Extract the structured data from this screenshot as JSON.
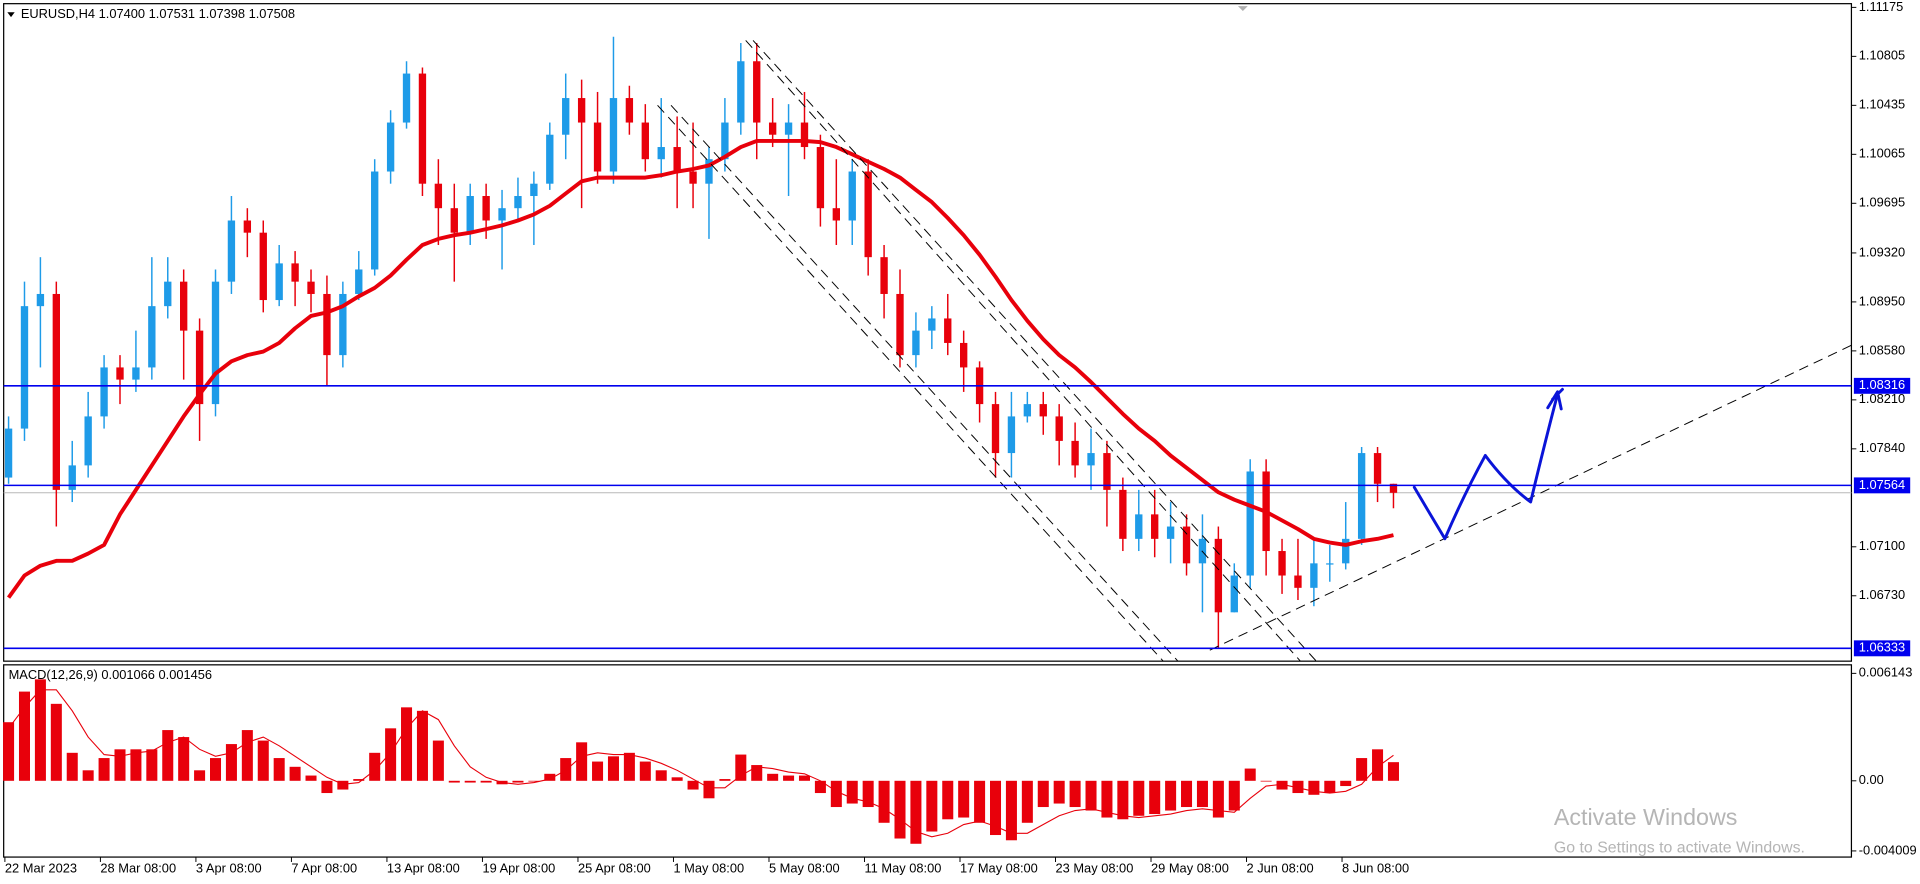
{
  "chart_data": [
    {
      "type": "candlestick",
      "title": "EURUSD,H4 1.07400 1.07531 1.07398 1.07508",
      "categories": [
        "22 Mar 2023",
        null,
        null,
        null,
        null,
        null,
        "28 Mar 08:00",
        null,
        null,
        null,
        null,
        null,
        "3 Apr 08:00",
        null,
        null,
        null,
        null,
        null,
        "7 Apr 08:00",
        null,
        null,
        null,
        null,
        null,
        "13 Apr 08:00",
        null,
        null,
        null,
        null,
        null,
        "19 Apr 08:00",
        null,
        null,
        null,
        null,
        null,
        "25 Apr 08:00",
        null,
        null,
        null,
        null,
        null,
        "1 May 08:00",
        null,
        null,
        null,
        null,
        null,
        "5 May 08:00",
        null,
        null,
        null,
        null,
        null,
        "11 May 08:00",
        null,
        null,
        null,
        null,
        null,
        "17 May 08:00",
        null,
        null,
        null,
        null,
        null,
        "23 May 08:00",
        null,
        null,
        null,
        null,
        null,
        "29 May 08:00",
        null,
        null,
        null,
        null,
        null,
        "2 Jun 08:00",
        null,
        null,
        null,
        null,
        null,
        "8 Jun 08:00",
        null,
        null,
        null
      ],
      "open": [
        1.07623,
        1.07993,
        1.08918,
        1.0901,
        1.0753,
        1.07715,
        1.08085,
        1.08455,
        1.08363,
        1.08455,
        1.08918,
        1.09103,
        1.08733,
        1.08178,
        1.09103,
        1.09565,
        1.09473,
        1.08964,
        1.09241,
        1.09103,
        1.0901,
        1.08548,
        1.0901,
        1.09195,
        1.09935,
        1.10305,
        1.10675,
        1.09843,
        1.09658,
        1.09473,
        1.0975,
        1.09565,
        1.09658,
        1.0975,
        1.09843,
        1.10213,
        1.1049,
        1.10305,
        1.09935,
        1.1049,
        1.10305,
        1.10028,
        1.1012,
        1.09935,
        1.09843,
        1.10028,
        1.10305,
        1.10768,
        1.10305,
        1.10213,
        1.10305,
        1.1012,
        1.09658,
        1.09565,
        1.09935,
        1.09288,
        1.0901,
        1.08548,
        1.08733,
        1.08825,
        1.0864,
        1.08455,
        1.08178,
        1.07808,
        1.08085,
        1.08178,
        1.08085,
        1.079,
        1.07715,
        1.07808,
        1.0753,
        1.0716,
        1.07345,
        1.0716,
        1.07253,
        1.06975,
        1.0716,
        1.06605,
        1.06883,
        1.07669,
        1.07068,
        1.06883,
        1.0679,
        1.06975,
        1.06975,
        1.0716,
        1.07808,
        1.07576
      ],
      "high": [
        1.08085,
        1.09103,
        1.09288,
        1.09103,
        1.079,
        1.0827,
        1.08548,
        1.08548,
        1.08733,
        1.09288,
        1.09288,
        1.09195,
        1.08825,
        1.09195,
        1.0975,
        1.09658,
        1.09565,
        1.0938,
        1.09334,
        1.09195,
        1.09149,
        1.09103,
        1.09334,
        1.10028,
        1.10398,
        1.10768,
        1.10721,
        1.10028,
        1.09843,
        1.09843,
        1.09843,
        1.09796,
        1.09889,
        1.09935,
        1.10305,
        1.10675,
        1.10629,
        1.10536,
        1.10953,
        1.10583,
        1.10444,
        1.1049,
        1.10351,
        1.10305,
        1.1012,
        1.1049,
        1.10906,
        1.10906,
        1.1049,
        1.10444,
        1.10536,
        1.10213,
        1.10028,
        1.10028,
        1.10028,
        1.0938,
        1.09195,
        1.08871,
        1.08918,
        1.0901,
        1.08733,
        1.08501,
        1.0827,
        1.0827,
        1.0827,
        1.0827,
        1.08178,
        1.08039,
        1.07993,
        1.079,
        1.07623,
        1.0753,
        1.0753,
        1.07438,
        1.07345,
        1.07345,
        1.07253,
        1.06975,
        1.07761,
        1.07761,
        1.0716,
        1.0716,
        1.0716,
        1.07114,
        1.07438,
        1.07854,
        1.07854,
        1.07576
      ],
      "low": [
        1.07576,
        1.079,
        1.08455,
        1.07253,
        1.07438,
        1.07623,
        1.07993,
        1.08178,
        1.0827,
        1.08363,
        1.08825,
        1.08363,
        1.079,
        1.08085,
        1.0901,
        1.09288,
        1.08871,
        1.08918,
        1.08918,
        1.08871,
        1.08316,
        1.08455,
        1.08964,
        1.09149,
        1.09843,
        1.10259,
        1.0975,
        1.0938,
        1.09103,
        1.0938,
        1.09426,
        1.09195,
        1.09565,
        1.0938,
        1.09796,
        1.10028,
        1.09658,
        1.09843,
        1.09843,
        1.10213,
        1.09935,
        1.09889,
        1.09658,
        1.09658,
        1.09426,
        1.09935,
        1.10213,
        1.10028,
        1.1012,
        1.0975,
        1.10028,
        1.09519,
        1.0938,
        1.0938,
        1.09149,
        1.08825,
        1.08455,
        1.08455,
        1.08594,
        1.08548,
        1.0827,
        1.08039,
        1.07623,
        1.07623,
        1.08039,
        1.07946,
        1.07715,
        1.07623,
        1.0753,
        1.07253,
        1.07068,
        1.07068,
        1.07021,
        1.06975,
        1.06883,
        1.06605,
        1.06337,
        1.06605,
        1.0679,
        1.06883,
        1.06744,
        1.06698,
        1.06651,
        1.06836,
        1.06929,
        1.07114,
        1.07438,
        1.07391
      ],
      "close": [
        1.07993,
        1.08918,
        1.0901,
        1.0753,
        1.07715,
        1.08085,
        1.08455,
        1.08363,
        1.08455,
        1.08918,
        1.09103,
        1.08733,
        1.08178,
        1.09103,
        1.09565,
        1.09473,
        1.08964,
        1.09241,
        1.09103,
        1.0901,
        1.08548,
        1.0901,
        1.09195,
        1.09935,
        1.10305,
        1.10675,
        1.09843,
        1.09658,
        1.09473,
        1.0975,
        1.09565,
        1.09658,
        1.0975,
        1.09843,
        1.10213,
        1.1049,
        1.10305,
        1.09935,
        1.1049,
        1.10305,
        1.10028,
        1.1012,
        1.09935,
        1.09843,
        1.10028,
        1.10305,
        1.10768,
        1.10305,
        1.10213,
        1.10305,
        1.1012,
        1.09658,
        1.09565,
        1.09935,
        1.09288,
        1.0901,
        1.08548,
        1.08733,
        1.08825,
        1.0864,
        1.08455,
        1.08178,
        1.07808,
        1.08085,
        1.08178,
        1.08085,
        1.079,
        1.07715,
        1.07808,
        1.0753,
        1.0716,
        1.07345,
        1.0716,
        1.07253,
        1.06975,
        1.0716,
        1.06605,
        1.06883,
        1.07669,
        1.07068,
        1.06883,
        1.0679,
        1.06975,
        1.06975,
        1.0716,
        1.07808,
        1.07576,
        1.07508
      ],
      "up_color": "#1e9be8",
      "down_color": "#e8000b",
      "moving_average": [
        1.06716,
        1.06883,
        1.06957,
        1.06994,
        1.06994,
        1.07049,
        1.07114,
        1.07345,
        1.0753,
        1.07715,
        1.079,
        1.08085,
        1.08252,
        1.08409,
        1.08501,
        1.08548,
        1.08575,
        1.0864,
        1.08751,
        1.08844,
        1.08871,
        1.08918,
        1.08992,
        1.09056,
        1.09149,
        1.09269,
        1.0938,
        1.09426,
        1.09454,
        1.09473,
        1.095,
        1.09528,
        1.09565,
        1.09611,
        1.09676,
        1.09769,
        1.09861,
        1.09889,
        1.09889,
        1.09889,
        1.09889,
        1.09907,
        1.09935,
        1.09954,
        1.09981,
        1.10046,
        1.1012,
        1.10166,
        1.10166,
        1.10166,
        1.10166,
        1.10157,
        1.1012,
        1.10065,
        1.10009,
        1.09954,
        1.09889,
        1.09796,
        1.09704,
        1.09584,
        1.09454,
        1.09306,
        1.0914,
        1.08964,
        1.08807,
        1.08668,
        1.08548,
        1.08455,
        1.08344,
        1.08224,
        1.08104,
        1.07993,
        1.079,
        1.07789,
        1.07697,
        1.07604,
        1.07512,
        1.07456,
        1.0741,
        1.07364,
        1.07299,
        1.07234,
        1.0716,
        1.07132,
        1.07114,
        1.07142,
        1.0716,
        1.07188
      ],
      "ma_color": "#e8000b",
      "levels": [
        1.08316,
        1.07564,
        1.06333
      ],
      "level_color": "#0000ee",
      "ylim": [
        1.06236,
        1.11203
      ],
      "yticks": [
        1.11175,
        1.10805,
        1.10435,
        1.10065,
        1.09695,
        {
          "value": 1.0932,
          "label": "1.09320"
        },
        {
          "value": 1.0895,
          "label": "1.08950"
        },
        {
          "value": 1.0858,
          "label": "1.08580"
        },
        {
          "value": 1.0821,
          "label": "1.08210"
        },
        {
          "value": 1.0784,
          "label": "1.07840"
        },
        {
          "value": 1.071,
          "label": "1.07100"
        },
        {
          "value": 1.0673,
          "label": "1.06730"
        }
      ],
      "grid": false
    },
    {
      "type": "macd",
      "title": "MACD(12,26,9) 0.001066 0.001456",
      "values": [
        0.00335,
        0.0051,
        0.0058,
        0.0044,
        0.0016,
        0.0006,
        0.0013,
        0.0018,
        0.0018,
        0.0018,
        0.0029,
        0.0025,
        0.0006,
        0.0013,
        0.0021,
        0.0029,
        0.0023,
        0.0013,
        0.0008,
        0.0003,
        -0.0007,
        -0.0005,
        0.0001,
        0.0016,
        0.003,
        0.0042,
        0.004,
        0.0023,
        -0.0001,
        -0.0001,
        -0.0001,
        -0.0002,
        -0.0001,
        0,
        0.0004,
        0.0013,
        0.0022,
        0.0011,
        0.0014,
        0.0016,
        0.0011,
        0.0006,
        0.0002,
        -0.0005,
        -0.001,
        0.0001,
        0.0015,
        0.0009,
        0.0004,
        0.0003,
        0.0003,
        -0.0007,
        -0.0015,
        -0.0013,
        -0.0015,
        -0.0024,
        -0.0033,
        -0.0036,
        -0.0029,
        -0.0022,
        -0.0021,
        -0.0024,
        -0.0031,
        -0.0034,
        -0.0024,
        -0.0015,
        -0.0013,
        -0.0015,
        -0.0017,
        -0.0021,
        -0.0022,
        -0.002,
        -0.0019,
        -0.0017,
        -0.0015,
        -0.0015,
        -0.0021,
        -0.0017,
        0.0007,
        0,
        -0.0005,
        -0.0007,
        -0.0008,
        -0.0007,
        -0.0003,
        0.0013,
        0.0018,
        0.001066
      ],
      "signal": [
        0.003,
        0.0042,
        0.0052,
        0.0052,
        0.004,
        0.0025,
        0.0015,
        0.0014,
        0.0016,
        0.0017,
        0.0022,
        0.0025,
        0.0018,
        0.0014,
        0.0016,
        0.0022,
        0.0025,
        0.002,
        0.0014,
        0.0008,
        0.0002,
        -0.0002,
        -0.0001,
        0.0006,
        0.0016,
        0.003,
        0.004,
        0.0035,
        0.002,
        0.0008,
        0.0002,
        -0.0001,
        -0.0002,
        -0.0001,
        0.0001,
        0.0006,
        0.0014,
        0.0016,
        0.0015,
        0.0015,
        0.0013,
        0.001,
        0.0006,
        0.0001,
        -0.0004,
        -0.0004,
        0.0003,
        0.0008,
        0.0007,
        0.0005,
        0.0004,
        0,
        -0.0006,
        -0.001,
        -0.0012,
        -0.0016,
        -0.0022,
        -0.0029,
        -0.0032,
        -0.003,
        -0.0025,
        -0.0023,
        -0.0026,
        -0.003,
        -0.003,
        -0.0025,
        -0.002,
        -0.0017,
        -0.0016,
        -0.0018,
        -0.002,
        -0.0021,
        -0.002,
        -0.0019,
        -0.0017,
        -0.0016,
        -0.0017,
        -0.0018,
        -0.001,
        -0.0003,
        -0.0002,
        -0.0004,
        -0.0006,
        -0.0007,
        -0.0006,
        -0.0002,
        0.0008,
        0.001456
      ],
      "color": "#e8000b",
      "ylim": [
        -0.00436,
        0.00663
      ],
      "yticks": [
        0.006143,
        {
          "value": 0,
          "label": "0.00"
        },
        -0.004009
      ]
    }
  ],
  "watermark": {
    "title": "Activate Windows",
    "subtitle": "Go to Settings to activate Windows."
  }
}
